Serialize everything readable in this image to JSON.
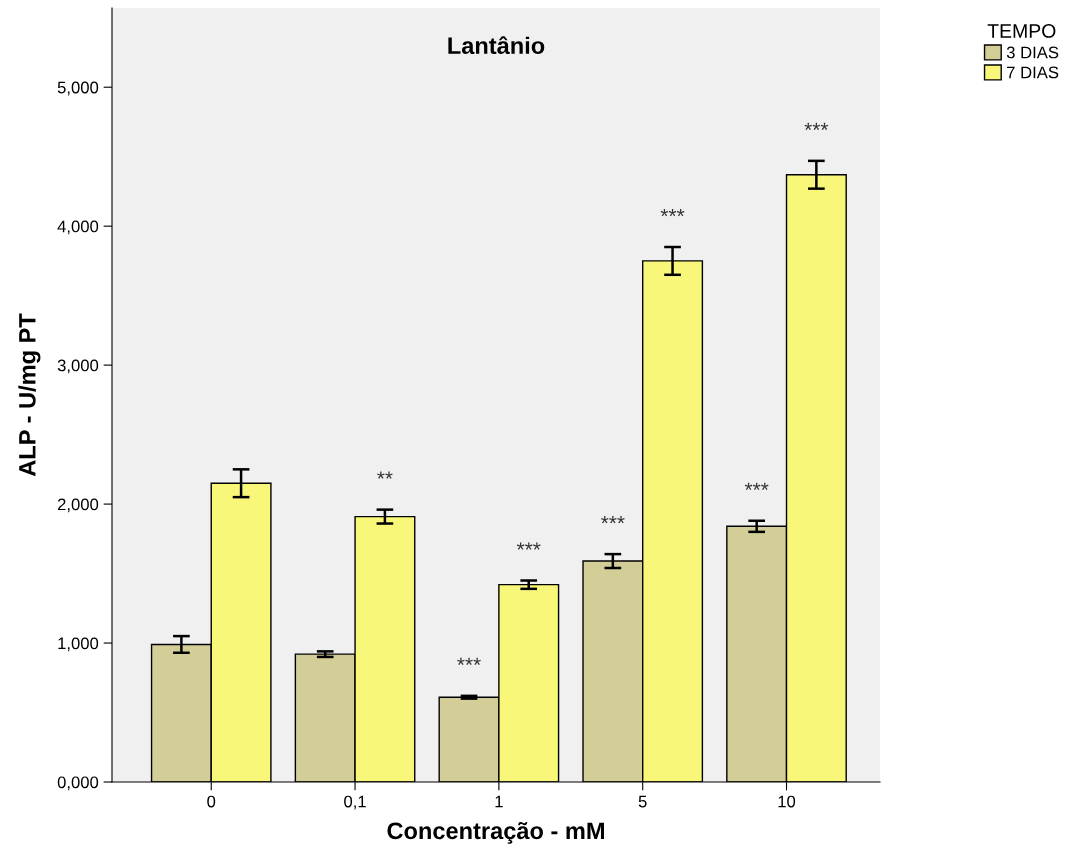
{
  "chart_data": {
    "type": "bar",
    "title": "Lantânio",
    "xlabel": "Concentração - mM",
    "ylabel": "ALP - U/mg PT",
    "legend_title": "TEMPO",
    "legend": "top right",
    "grid": false,
    "categories": [
      "0",
      "0,1",
      "1",
      "5",
      "10"
    ],
    "series": [
      {
        "name": "3 DIAS",
        "color": "#d3ce98",
        "values": [
          0.99,
          0.92,
          0.61,
          1.59,
          1.84
        ],
        "errors": [
          0.06,
          0.02,
          0.01,
          0.05,
          0.04
        ]
      },
      {
        "name": "7 DIAS",
        "color": "#f9f77a",
        "values": [
          2.15,
          1.91,
          1.42,
          3.75,
          4.37
        ],
        "errors": [
          0.1,
          0.05,
          0.03,
          0.1,
          0.1
        ]
      }
    ],
    "ylim": [
      0,
      5.57
    ],
    "yticks": [
      {
        "value": 0,
        "label": "0,000"
      },
      {
        "value": 1,
        "label": "1,000"
      },
      {
        "value": 2,
        "label": "2,000"
      },
      {
        "value": 3,
        "label": "3,000"
      },
      {
        "value": 4,
        "label": "4,000"
      },
      {
        "value": 5,
        "label": "5,000"
      }
    ],
    "annotations": [
      {
        "text": "**",
        "x": "0,1",
        "y": 1.91
      },
      {
        "text": "***",
        "x": "1",
        "y": 0.61
      },
      {
        "text": "***",
        "x": "1",
        "y": 1.42
      },
      {
        "text": "***",
        "x": "5",
        "y": 1.59
      },
      {
        "text": "***",
        "x": "5",
        "y": 3.75
      },
      {
        "text": "***",
        "x": "10",
        "y": 1.84
      },
      {
        "text": "***",
        "x": "10",
        "y": 4.37
      }
    ]
  }
}
